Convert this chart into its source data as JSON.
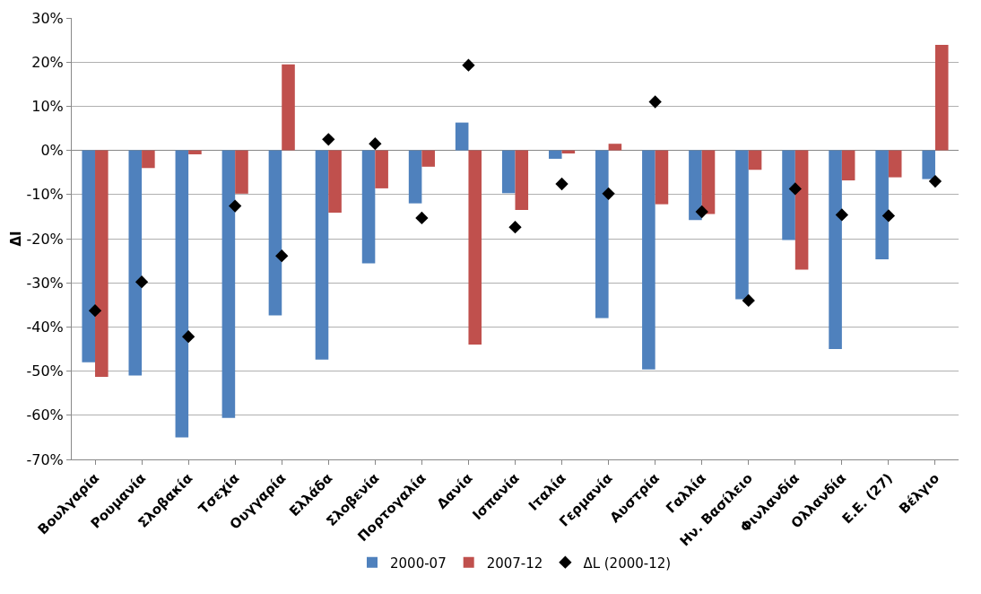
{
  "chart_data": {
    "type": "bar",
    "ylabel": "ΔΙ",
    "categories": [
      "Βουλγαρία",
      "Ρουμανία",
      "Σλοβακία",
      "Τσεχία",
      "Ουγγαρία",
      "Ελλάδα",
      "Σλοβενία",
      "Πορτογαλία",
      "Δανία",
      "Ισπανία",
      "Ιταλία",
      "Γερμανία",
      "Αυστρία",
      "Γαλλία",
      "Ην. Βασίλειο",
      "Φινλανδία",
      "Ολλανδία",
      "Ε.Ε. (27)",
      "Βέλγιο"
    ],
    "series": [
      {
        "name": "2000-07",
        "color": "#4f81bd",
        "values": [
          -48,
          -51,
          -65,
          -60.6,
          -37.4,
          -47.4,
          -25.6,
          -12,
          6.3,
          -9.7,
          -1.9,
          -38,
          -49.6,
          -15.8,
          -33.7,
          -20.3,
          -45,
          -24.7,
          -6.5
        ]
      },
      {
        "name": "2007-12",
        "color": "#c0504d",
        "values": [
          -51.3,
          -4,
          -0.9,
          -9.8,
          19.5,
          -14.1,
          -8.6,
          -3.7,
          -44,
          -13.5,
          -0.7,
          1.5,
          -12.2,
          -14.4,
          -4.4,
          -27,
          -6.8,
          -6.1,
          23.9
        ]
      },
      {
        "name": "ΔL (2000-12)",
        "type": "scatter",
        "marker": "diamond",
        "color": "#000000",
        "values": [
          -36.3,
          -29.8,
          -42.2,
          -12.6,
          -23.9,
          2.5,
          1.5,
          -15.3,
          19.3,
          -17.4,
          -7.6,
          -9.8,
          11,
          -13.9,
          -34,
          -8.7,
          -14.6,
          -14.8,
          -7
        ]
      }
    ],
    "ylim": [
      -70,
      30
    ],
    "yticks": [
      {
        "value": -70,
        "label": "-70%"
      },
      {
        "value": -60,
        "label": "-60%"
      },
      {
        "value": -50,
        "label": "-50%"
      },
      {
        "value": -40,
        "label": "-40%"
      },
      {
        "value": -30,
        "label": "-30%"
      },
      {
        "value": -20,
        "label": "-20%"
      },
      {
        "value": -10,
        "label": "-10%"
      },
      {
        "value": 0,
        "label": "0%"
      },
      {
        "value": 10,
        "label": "10%"
      },
      {
        "value": 20,
        "label": "20%"
      },
      {
        "value": 30,
        "label": "30%"
      }
    ],
    "grid": "y",
    "legend": "bottom"
  }
}
